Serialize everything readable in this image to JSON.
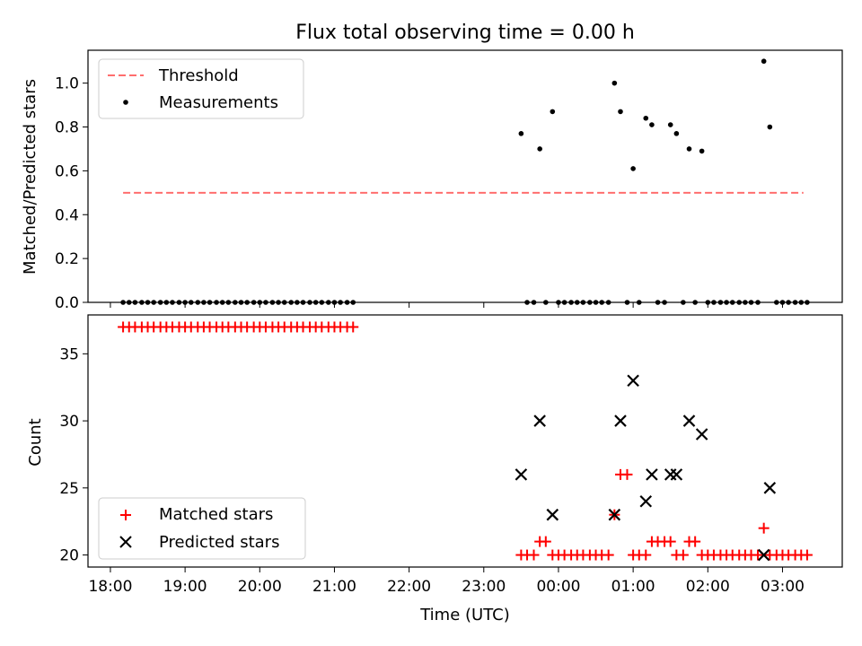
{
  "figure": {
    "title": "Flux total observing time = 0.00 h"
  },
  "chart_data": [
    {
      "type": "scatter",
      "panel": "top",
      "ylabel": "Matched/Predicted stars",
      "xlabel": "",
      "xlim": [
        -0.3,
        9.8
      ],
      "ylim": [
        0.0,
        1.15
      ],
      "x_tick_labels": [],
      "y_ticks": [
        0.0,
        0.2,
        0.4,
        0.6,
        0.8,
        1.0
      ],
      "y_tick_labels": [
        "0.0",
        "0.2",
        "0.4",
        "0.6",
        "0.8",
        "1.0"
      ],
      "legend": {
        "position": "upper-left",
        "entries": [
          "Threshold",
          "Measurements"
        ]
      },
      "threshold": {
        "name": "Threshold",
        "value": 0.5,
        "x_start": 0.17,
        "x_end": 9.28,
        "color": "#ff6e6e"
      },
      "series": [
        {
          "name": "Measurements",
          "color": "#000000",
          "x": [
            0.17,
            0.25,
            0.33,
            0.42,
            0.5,
            0.58,
            0.67,
            0.75,
            0.83,
            0.92,
            1.0,
            1.08,
            1.17,
            1.25,
            1.33,
            1.42,
            1.5,
            1.58,
            1.67,
            1.75,
            1.83,
            1.92,
            2.0,
            2.08,
            2.17,
            2.25,
            2.33,
            2.42,
            2.5,
            2.58,
            2.67,
            2.75,
            2.83,
            2.92,
            3.0,
            3.08,
            3.17,
            3.25,
            5.5,
            5.58,
            5.67,
            5.75,
            5.83,
            5.92,
            6.0,
            6.08,
            6.17,
            6.25,
            6.33,
            6.42,
            6.5,
            6.58,
            6.67,
            6.75,
            6.83,
            6.92,
            7.0,
            7.08,
            7.17,
            7.25,
            7.33,
            7.42,
            7.5,
            7.58,
            7.67,
            7.75,
            7.83,
            7.92,
            8.0,
            8.08,
            8.17,
            8.25,
            8.33,
            8.42,
            8.5,
            8.58,
            8.67,
            8.75,
            8.83,
            8.92,
            9.0,
            9.08,
            9.17,
            9.25,
            9.33
          ],
          "y": [
            0,
            0,
            0,
            0,
            0,
            0,
            0,
            0,
            0,
            0,
            0,
            0,
            0,
            0,
            0,
            0,
            0,
            0,
            0,
            0,
            0,
            0,
            0,
            0,
            0,
            0,
            0,
            0,
            0,
            0,
            0,
            0,
            0,
            0,
            0,
            0,
            0,
            0,
            0.77,
            0,
            0,
            0.7,
            0,
            0.87,
            0,
            0,
            0,
            0,
            0,
            0,
            0,
            0,
            0,
            1.0,
            0.87,
            0,
            0.61,
            0,
            0.84,
            0.81,
            0,
            0,
            0.81,
            0.77,
            0,
            0.7,
            0,
            0.69,
            0,
            0,
            0,
            0,
            0,
            0,
            0,
            0,
            0,
            1.1,
            0.8,
            0,
            0,
            0,
            0,
            0,
            0
          ]
        }
      ]
    },
    {
      "type": "scatter",
      "panel": "bottom",
      "ylabel": "Count",
      "xlabel": "Time (UTC)",
      "xlim": [
        -0.3,
        9.8
      ],
      "ylim": [
        19.1,
        37.9
      ],
      "x_ticks": [
        0,
        1,
        2,
        3,
        4,
        5,
        6,
        7,
        8,
        9
      ],
      "x_tick_labels": [
        "18:00",
        "19:00",
        "20:00",
        "21:00",
        "22:00",
        "23:00",
        "00:00",
        "01:00",
        "02:00",
        "03:00"
      ],
      "y_ticks": [
        20,
        25,
        30,
        35
      ],
      "y_tick_labels": [
        "20",
        "25",
        "30",
        "35"
      ],
      "legend": {
        "position": "lower-left",
        "entries": [
          "Matched stars",
          "Predicted stars"
        ]
      },
      "series": [
        {
          "name": "Matched stars",
          "marker": "plus",
          "color": "#ff0000",
          "x": [
            0.17,
            0.25,
            0.33,
            0.42,
            0.5,
            0.58,
            0.67,
            0.75,
            0.83,
            0.92,
            1.0,
            1.08,
            1.17,
            1.25,
            1.33,
            1.42,
            1.5,
            1.58,
            1.67,
            1.75,
            1.83,
            1.92,
            2.0,
            2.08,
            2.17,
            2.25,
            2.33,
            2.42,
            2.5,
            2.58,
            2.67,
            2.75,
            2.83,
            2.92,
            3.0,
            3.08,
            3.17,
            3.25,
            5.5,
            5.58,
            5.67,
            5.75,
            5.83,
            5.92,
            6.0,
            6.08,
            6.17,
            6.25,
            6.33,
            6.42,
            6.5,
            6.58,
            6.67,
            6.75,
            6.83,
            6.92,
            7.0,
            7.08,
            7.17,
            7.25,
            7.33,
            7.42,
            7.5,
            7.58,
            7.67,
            7.75,
            7.83,
            7.92,
            8.0,
            8.08,
            8.17,
            8.25,
            8.33,
            8.42,
            8.5,
            8.58,
            8.67,
            8.75,
            8.83,
            8.92,
            9.0,
            9.08,
            9.17,
            9.25,
            9.33
          ],
          "y": [
            37,
            37,
            37,
            37,
            37,
            37,
            37,
            37,
            37,
            37,
            37,
            37,
            37,
            37,
            37,
            37,
            37,
            37,
            37,
            37,
            37,
            37,
            37,
            37,
            37,
            37,
            37,
            37,
            37,
            37,
            37,
            37,
            37,
            37,
            37,
            37,
            37,
            37,
            20,
            20,
            20,
            21,
            21,
            20,
            20,
            20,
            20,
            20,
            20,
            20,
            20,
            20,
            20,
            23,
            26,
            26,
            20,
            20,
            20,
            21,
            21,
            21,
            21,
            20,
            20,
            21,
            21,
            20,
            20,
            20,
            20,
            20,
            20,
            20,
            20,
            20,
            20,
            22,
            20,
            20,
            20,
            20,
            20,
            20,
            20
          ]
        },
        {
          "name": "Predicted stars",
          "marker": "x",
          "color": "#000000",
          "x": [
            5.5,
            5.75,
            5.92,
            6.75,
            6.83,
            7.0,
            7.17,
            7.25,
            7.5,
            7.58,
            7.75,
            7.92,
            8.75,
            8.83
          ],
          "y": [
            26,
            30,
            23,
            23,
            30,
            33,
            24,
            26,
            26,
            26,
            30,
            29,
            20,
            25
          ]
        }
      ]
    }
  ]
}
